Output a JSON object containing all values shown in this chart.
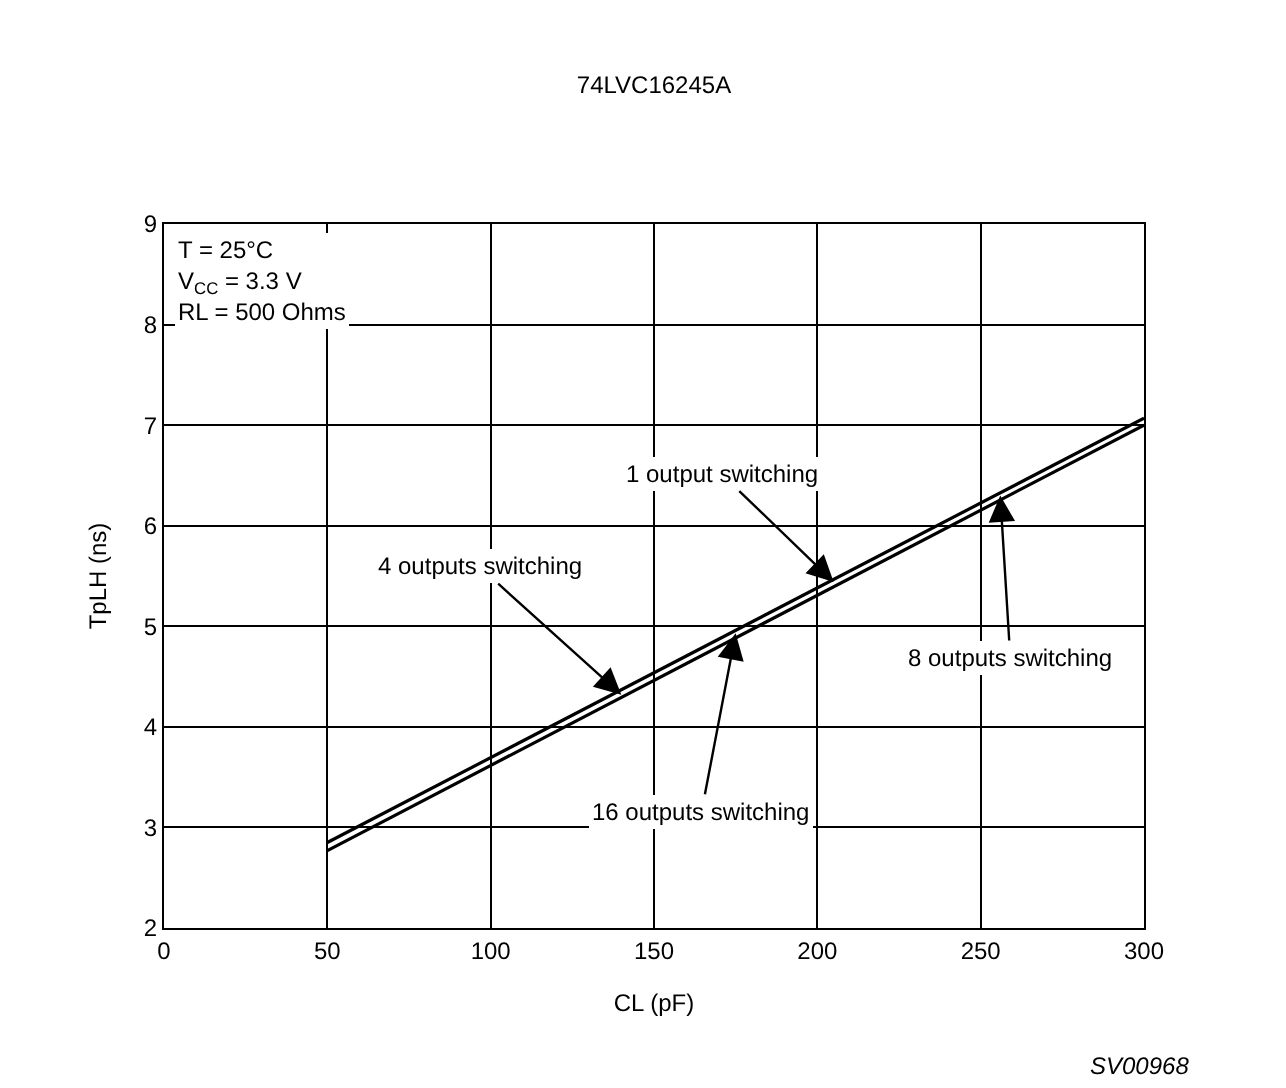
{
  "chart_data": {
    "type": "line",
    "title": "74LVC16245A",
    "xlabel": "CL (pF)",
    "ylabel": "TpLH (ns)",
    "x": [
      50,
      300
    ],
    "series": [
      {
        "color": "#000000",
        "values": [
          2.85,
          7.07
        ]
      },
      {
        "color": "#000000",
        "values": [
          2.77,
          7.0
        ]
      }
    ],
    "xlim": [
      0,
      300
    ],
    "xticks": [
      0,
      50,
      100,
      150,
      200,
      250,
      300
    ],
    "ylim": [
      2,
      9
    ],
    "yticks": [
      2,
      3,
      4,
      5,
      6,
      7,
      8,
      9
    ],
    "grid": true,
    "legend": false,
    "marker": "none",
    "line_style": "solid",
    "annotations": [
      "T = 25°C\nV$_{CC}$ = 3.3 V\nRL = 500 Ohms",
      {
        "text": "1 output switching",
        "x": 205,
        "y": 5.44
      },
      {
        "text": "4 outputs switching",
        "x": 140,
        "y": 4.32
      },
      {
        "text": "16 outputs switching",
        "x": 175,
        "y": 4.93
      },
      {
        "text": "8 outputs switching",
        "x": 256,
        "y": 6.3
      },
      "SV00968"
    ]
  }
}
